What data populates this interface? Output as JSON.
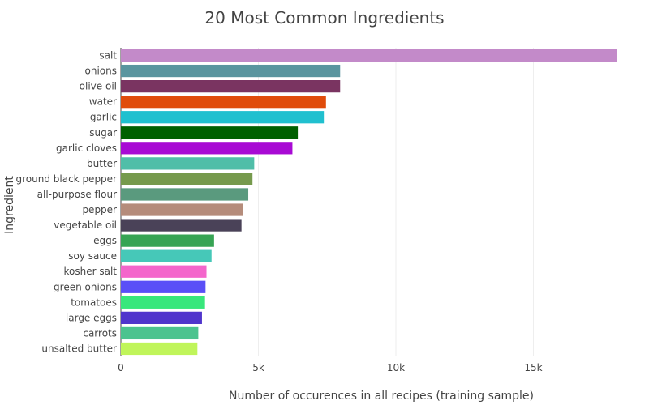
{
  "chart_data": {
    "type": "bar",
    "orientation": "horizontal",
    "title": "20 Most Common Ingredients",
    "xlabel": "Number of occurences in all recipes (training sample)",
    "ylabel": "Ingredient",
    "xlim": [
      0,
      18200
    ],
    "x_ticks": [
      0,
      5000,
      10000,
      15000
    ],
    "x_tick_labels": [
      "0",
      "5k",
      "10k",
      "15k"
    ],
    "grid": true,
    "categories": [
      "salt",
      "onions",
      "olive oil",
      "water",
      "garlic",
      "sugar",
      "garlic cloves",
      "butter",
      "ground black pepper",
      "all-purpose flour",
      "pepper",
      "vegetable oil",
      "eggs",
      "soy sauce",
      "kosher salt",
      "green onions",
      "tomatoes",
      "large eggs",
      "carrots",
      "unsalted butter"
    ],
    "values": [
      18049,
      7972,
      7972,
      7457,
      7380,
      6434,
      6237,
      4848,
      4785,
      4632,
      4438,
      4385,
      3388,
      3296,
      3113,
      3078,
      3058,
      2948,
      2814,
      2782
    ],
    "colors": [
      "#c38ac9",
      "#5a959f",
      "#7a3461",
      "#e04c0b",
      "#20c0cf",
      "#006000",
      "#a80ad4",
      "#50bea8",
      "#769a4d",
      "#5a9a7e",
      "#b58c7b",
      "#4a4258",
      "#37a454",
      "#46c8b8",
      "#f466cb",
      "#5a4ff7",
      "#38e77c",
      "#5035cc",
      "#4cc38f",
      "#c0f55a"
    ]
  }
}
